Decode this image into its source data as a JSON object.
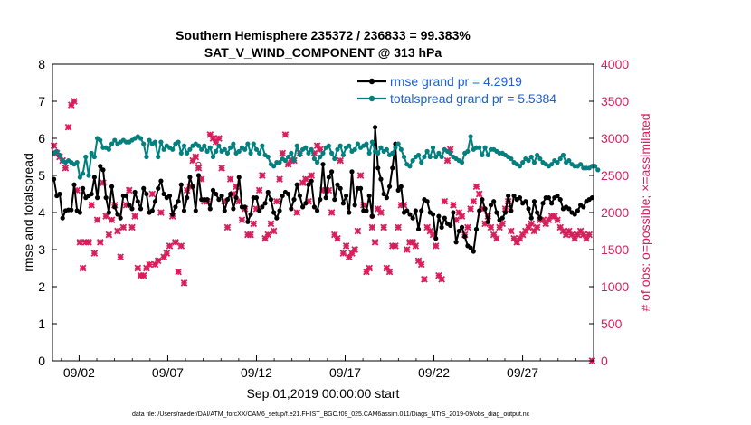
{
  "chart_data": {
    "type": "line",
    "title": "Southern Hemisphere 235372 / 236833 = 99.383%",
    "subtitle": "SAT_V_WIND_COMPONENT @ 313 hPa",
    "xlabel": "Sep.01,2019 00:00:00 start",
    "ylabel_left": "rmse and totalspread",
    "ylabel_right": "# of obs: o=possible; ×=assimilated",
    "footnote": "data file: /Users/raeder/DAI/ATM_forcXX/CAM6_setup/f.e21.FHIST_BGC.f09_025.CAM6assim.011/Diags_NTrS_2019-09/obs_diag_output.nc",
    "xlim": [
      0.5,
      31.0
    ],
    "ylim_left": [
      0,
      8
    ],
    "ylim_right": [
      0,
      4000
    ],
    "x_ticks": [
      {
        "value": 2,
        "label": "09/02"
      },
      {
        "value": 7,
        "label": "09/07"
      },
      {
        "value": 12,
        "label": "09/12"
      },
      {
        "value": 17,
        "label": "09/17"
      },
      {
        "value": 22,
        "label": "09/22"
      },
      {
        "value": 27,
        "label": "09/27"
      }
    ],
    "y_ticks_left": [
      "0",
      "1",
      "2",
      "3",
      "4",
      "5",
      "6",
      "7",
      "8"
    ],
    "y_ticks_right": [
      "0",
      "500",
      "1000",
      "1500",
      "2000",
      "2500",
      "3000",
      "3500",
      "4000"
    ],
    "series": [
      {
        "name": "rmse",
        "legend": "rmse grand pr = 4.2919",
        "axis": "left",
        "color": "#000000",
        "values": [
          4.9,
          4.45,
          4.5,
          3.85,
          4.05,
          4.07,
          4.07,
          4.75,
          4.05,
          4.0,
          4.65,
          4.4,
          4.45,
          4.5,
          4.95,
          4.4,
          5.25,
          5.15,
          4.4,
          4.0,
          4.7,
          4.15,
          3.95,
          3.85,
          4.45,
          4.45,
          4.2,
          4.1,
          4.55,
          4.3,
          4.1,
          4.65,
          4.5,
          4.0,
          4.05,
          4.3,
          4.65,
          4.85,
          4.5,
          4.4,
          4.45,
          3.95,
          4.15,
          4.3,
          4.75,
          4.05,
          4.4,
          4.95,
          4.7,
          4.05,
          5.0,
          4.35,
          4.35,
          4.35,
          4.1,
          4.6,
          4.5,
          4.35,
          4.45,
          4.05,
          4.35,
          4.5,
          4.1,
          4.4,
          4.95,
          4.15,
          4.15,
          3.75,
          3.95,
          4.4,
          4.4,
          4.05,
          4.15,
          4.25,
          4.55,
          4.35,
          4.0,
          3.85,
          4.05,
          4.45,
          4.55,
          4.5,
          4.1,
          4.35,
          4.75,
          4.45,
          4.15,
          4.25,
          4.75,
          4.85,
          4.15,
          4.05,
          4.35,
          5.3,
          4.4,
          4.95,
          5.1,
          4.35,
          4.75,
          4.65,
          4.25,
          4.45,
          4.0,
          5.1,
          4.2,
          4.65,
          4.65,
          4.05,
          4.05,
          4.45,
          3.9,
          6.3,
          5.2,
          4.9,
          4.5,
          4.4,
          4.7,
          5.2,
          5.85,
          4.6,
          4.7,
          4.0,
          4.05,
          3.95,
          3.85,
          4.05,
          3.55,
          4.05,
          4.35,
          4.3,
          4.0,
          3.95,
          3.3,
          3.9,
          3.6,
          3.85,
          3.7,
          3.65,
          4.0,
          3.2,
          3.5,
          3.6,
          3.35,
          3.1,
          3.05,
          2.95,
          3.55,
          4.05,
          4.35,
          4.1,
          3.75,
          4.2,
          4.3,
          4.0,
          3.8,
          3.85,
          4.0,
          4.45,
          4.05,
          4.45,
          4.35,
          4.4,
          4.25,
          4.3,
          4.1,
          3.85,
          4.3,
          4.0,
          3.85,
          4.25,
          4.4,
          4.4,
          4.25,
          4.4,
          4.45,
          4.35,
          4.1,
          4.15,
          4.1,
          4.0,
          3.95,
          4.05,
          4.2,
          4.15,
          4.3,
          4.35,
          4.4
        ]
      },
      {
        "name": "totalspread",
        "legend": "totalspread grand pr = 5.5384",
        "axis": "left",
        "color": "#00807f",
        "values": [
          5.6,
          5.65,
          5.55,
          5.4,
          5.35,
          5.4,
          5.35,
          5.3,
          5.35,
          4.95,
          5.05,
          5.5,
          5.0,
          5.6,
          5.5,
          6.0,
          5.95,
          5.75,
          5.75,
          5.7,
          5.85,
          5.95,
          5.85,
          5.9,
          5.95,
          5.9,
          5.9,
          5.95,
          6.0,
          6.05,
          6.0,
          5.85,
          5.5,
          5.95,
          5.85,
          5.9,
          5.5,
          5.9,
          5.7,
          5.8,
          5.75,
          5.7,
          5.85,
          5.9,
          5.6,
          5.8,
          5.6,
          5.7,
          5.8,
          5.85,
          5.8,
          5.7,
          5.8,
          5.65,
          5.75,
          5.5,
          5.65,
          5.8,
          5.65,
          5.7,
          5.6,
          5.75,
          5.85,
          5.6,
          5.65,
          5.75,
          5.7,
          5.85,
          5.6,
          5.85,
          5.7,
          5.6,
          5.8,
          5.55,
          5.5,
          5.3,
          5.25,
          5.35,
          5.35,
          5.45,
          5.4,
          5.5,
          5.6,
          5.4,
          5.8,
          5.55,
          5.7,
          5.75,
          5.6,
          5.7,
          5.45,
          5.35,
          5.5,
          5.6,
          5.75,
          5.8,
          5.6,
          5.45,
          5.7,
          5.8,
          5.55,
          5.75,
          5.8,
          5.65,
          5.7,
          5.85,
          5.75,
          5.8,
          5.85,
          5.6,
          5.9,
          5.65,
          5.6,
          5.75,
          5.65,
          5.7,
          5.55,
          5.6,
          5.75,
          5.85,
          5.7,
          5.5,
          5.3,
          5.25,
          5.4,
          5.5,
          5.55,
          5.35,
          5.5,
          5.65,
          5.5,
          5.75,
          5.5,
          5.6,
          5.5,
          5.7,
          5.65,
          5.6,
          5.5,
          5.45,
          5.4,
          5.35,
          5.6,
          5.65,
          6.05,
          5.7,
          5.75,
          5.75,
          5.55,
          5.75,
          5.55,
          5.7,
          5.7,
          5.65,
          5.6,
          5.6,
          5.55,
          5.5,
          5.45,
          5.35,
          5.3,
          5.25,
          5.35,
          5.45,
          5.4,
          5.5,
          5.35,
          5.55,
          5.45,
          5.35,
          5.3,
          5.25,
          5.3,
          5.4,
          5.35,
          5.45,
          5.55,
          5.35,
          5.4,
          5.3,
          5.25,
          5.25,
          5.3,
          5.2,
          5.2,
          5.2,
          5.25,
          5.25,
          5.15
        ]
      }
    ],
    "obs_assimilated": {
      "axis": "right",
      "color": "#d81e5b",
      "values": [
        2900,
        2800,
        2750,
        2700,
        2600,
        3150,
        3450,
        3500,
        2300,
        1600,
        1250,
        1600,
        1600,
        2100,
        1450,
        1900,
        1600,
        2400,
        1950,
        1700,
        1900,
        2100,
        1750,
        1400,
        1800,
        2100,
        2300,
        1800,
        1950,
        1250,
        1150,
        1150,
        1250,
        1300,
        2250,
        1300,
        1350,
        2000,
        1400,
        1450,
        1550,
        1950,
        1600,
        1200,
        1550,
        1050,
        2300,
        2350,
        2700,
        2750,
        2600,
        2450,
        2150,
        2150,
        3050,
        3000,
        2950,
        3000,
        2600,
        2150,
        1800,
        2450,
        2250,
        2350,
        2150,
        1900,
        2050,
        1700,
        1700,
        1850,
        2050,
        2300,
        2500,
        1650,
        1700,
        1850,
        1750,
        2150,
        2450,
        2800,
        3050,
        2650,
        2700,
        2700,
        2000,
        2800,
        2400,
        2450,
        2150,
        2500,
        2800,
        2900,
        2850,
        2300,
        2300,
        2300,
        2000,
        1700,
        1650,
        2700,
        1450,
        1550,
        1400,
        1450,
        1500,
        1750,
        2500,
        2100,
        1200,
        1250,
        1800,
        1600,
        2050,
        2000,
        1800,
        1250,
        1200,
        1550,
        1550,
        1800,
        2100,
        2100,
        1500,
        1600,
        1600,
        1550,
        1350,
        1300,
        1100,
        1800,
        1750,
        1700,
        1550,
        1150,
        1100,
        2150,
        2700,
        2850,
        2100,
        1900,
        2000,
        1950,
        1700,
        1800,
        2050,
        2150,
        2350,
        2250,
        2050,
        1850,
        1950,
        1800,
        1700,
        1650,
        1800,
        1850,
        2050,
        2150,
        1750,
        1650,
        1600,
        1650,
        1700,
        1750,
        1800,
        1850,
        1750,
        1800,
        1900,
        1900,
        1850,
        1900,
        1950,
        1950,
        1900,
        1800,
        1750,
        1700,
        1750,
        1700,
        1650,
        1700,
        1750,
        1700,
        1650,
        1700,
        0
      ]
    },
    "obs_possible": {
      "axis": "right",
      "color": "#d81e5b",
      "values": [
        2900,
        2800,
        2750,
        2700,
        2600,
        3150,
        3450,
        3500,
        2300,
        1600,
        1250,
        1600,
        1600,
        2100,
        1450,
        1900,
        1600,
        2400,
        1950,
        1700,
        1900,
        2100,
        1750,
        1400,
        1800,
        2100,
        2300,
        1800,
        1950,
        1250,
        1150,
        1150,
        1250,
        1300,
        2250,
        1300,
        1350,
        2000,
        1400,
        1450,
        1550,
        1950,
        1600,
        1200,
        1550,
        1050,
        2300,
        2350,
        2700,
        2750,
        2650,
        2450,
        2150,
        2150,
        3050,
        3000,
        2950,
        3000,
        2600,
        2150,
        1800,
        2450,
        2250,
        2350,
        2150,
        1900,
        2050,
        1700,
        1700,
        1850,
        2050,
        2300,
        2500,
        1650,
        1700,
        1850,
        1750,
        2150,
        2450,
        2800,
        3050,
        2650,
        2700,
        2700,
        2000,
        2800,
        2400,
        2450,
        2150,
        2500,
        2800,
        2900,
        2850,
        2300,
        2300,
        2300,
        2000,
        1700,
        1650,
        2700,
        1450,
        1550,
        1400,
        1450,
        1500,
        1750,
        2500,
        2100,
        1200,
        1250,
        1950,
        1600,
        2050,
        2000,
        1800,
        1250,
        1200,
        1550,
        1550,
        1800,
        2100,
        2100,
        1500,
        1600,
        1600,
        1550,
        1350,
        1300,
        1100,
        1800,
        1750,
        1700,
        1550,
        1150,
        1100,
        2150,
        2700,
        2850,
        2100,
        1900,
        2000,
        1950,
        1700,
        1800,
        2050,
        2150,
        2350,
        2250,
        2050,
        1850,
        1950,
        1800,
        1700,
        1650,
        1800,
        1850,
        2050,
        2150,
        1750,
        1650,
        1600,
        1650,
        1700,
        1750,
        1800,
        1850,
        1750,
        1800,
        1900,
        1900,
        1850,
        1900,
        1950,
        1950,
        1900,
        1800,
        1750,
        1700,
        1750,
        1700,
        1650,
        1700,
        1750,
        1700,
        1650,
        1700,
        0
      ]
    },
    "grid": false,
    "legend_position": "top-right"
  },
  "colors": {
    "rmse": "#000000",
    "totalspread": "#00807f",
    "obs": "#d81e5b",
    "legend_text": "#1f5fd8"
  }
}
